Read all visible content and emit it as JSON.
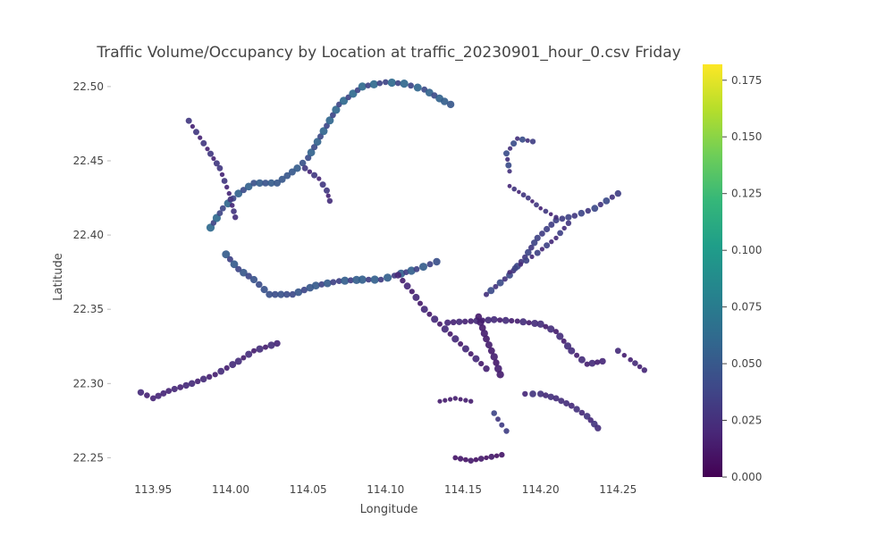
{
  "chart_data": {
    "type": "scatter",
    "title": "Traffic Volume/Occupancy by Location at traffic_20230901_hour_0.csv Friday",
    "xlabel": "Longitude",
    "ylabel": "Latitude",
    "xlim": [
      113.925,
      114.285
    ],
    "ylim": [
      22.237,
      22.515
    ],
    "x_ticks": [
      113.95,
      114.0,
      114.05,
      114.1,
      114.15,
      114.2,
      114.25
    ],
    "x_tick_labels": [
      "113.95",
      "114.00",
      "114.05",
      "114.10",
      "114.15",
      "114.20",
      "114.25"
    ],
    "y_ticks": [
      22.25,
      22.3,
      22.35,
      22.4,
      22.45,
      22.5
    ],
    "y_tick_labels": [
      "22.25",
      "22.30",
      "22.35",
      "22.40",
      "22.45",
      "22.50"
    ],
    "grid": false,
    "colorbar": {
      "colorscale": "Viridis",
      "range": [
        0,
        0.182
      ],
      "ticks": [
        0,
        0.025,
        0.05,
        0.075,
        0.1,
        0.125,
        0.15,
        0.175
      ],
      "tick_labels": [
        "0.000",
        "0.025",
        "0.050",
        "0.075",
        "0.100",
        "0.125",
        "0.150",
        "0.175"
      ]
    },
    "marker_encoding": "color = occupancy, size = volume",
    "routes": [
      {
        "pts": [
          [
            113.942,
            22.294
          ],
          [
            113.95,
            22.29
          ],
          [
            113.96,
            22.295
          ],
          [
            113.975,
            22.3
          ],
          [
            113.99,
            22.306
          ],
          [
            114.005,
            22.315
          ],
          [
            114.015,
            22.322
          ],
          [
            114.03,
            22.327
          ]
        ],
        "v": 0.02,
        "s": 5
      },
      {
        "pts": [
          [
            113.997,
            22.387
          ],
          [
            114.005,
            22.377
          ],
          [
            114.015,
            22.37
          ],
          [
            114.025,
            22.36
          ],
          [
            114.04,
            22.36
          ],
          [
            114.055,
            22.366
          ],
          [
            114.07,
            22.369
          ],
          [
            114.085,
            22.37
          ],
          [
            114.097,
            22.37
          ],
          [
            114.11,
            22.374
          ],
          [
            114.12,
            22.377
          ],
          [
            114.133,
            22.382
          ]
        ],
        "v": 0.045,
        "s": 6
      },
      {
        "pts": [
          [
            113.987,
            22.405
          ],
          [
            113.995,
            22.418
          ],
          [
            114.005,
            22.428
          ],
          [
            114.015,
            22.435
          ],
          [
            114.03,
            22.435
          ],
          [
            114.043,
            22.445
          ],
          [
            114.05,
            22.452
          ],
          [
            114.06,
            22.47
          ],
          [
            114.07,
            22.488
          ],
          [
            114.085,
            22.5
          ],
          [
            114.1,
            22.503
          ],
          [
            114.112,
            22.502
          ],
          [
            114.125,
            22.498
          ],
          [
            114.138,
            22.49
          ],
          [
            114.142,
            22.488
          ]
        ],
        "v": 0.05,
        "s": 6
      },
      {
        "pts": [
          [
            113.973,
            22.477
          ],
          [
            113.985,
            22.458
          ],
          [
            113.993,
            22.445
          ],
          [
            113.999,
            22.428
          ],
          [
            114.003,
            22.412
          ]
        ],
        "v": 0.025,
        "s": 4
      },
      {
        "pts": [
          [
            114.048,
            22.445
          ],
          [
            114.057,
            22.438
          ],
          [
            114.062,
            22.43
          ],
          [
            114.064,
            22.423
          ]
        ],
        "v": 0.025,
        "s": 4
      },
      {
        "pts": [
          [
            114.108,
            22.373
          ],
          [
            114.117,
            22.362
          ],
          [
            114.125,
            22.35
          ],
          [
            114.135,
            22.34
          ],
          [
            114.145,
            22.33
          ],
          [
            114.155,
            22.32
          ],
          [
            114.165,
            22.31
          ]
        ],
        "v": 0.018,
        "s": 5
      },
      {
        "pts": [
          [
            114.14,
            22.341
          ],
          [
            114.155,
            22.342
          ],
          [
            114.17,
            22.343
          ],
          [
            114.185,
            22.342
          ],
          [
            114.2,
            22.34
          ],
          [
            114.21,
            22.335
          ],
          [
            114.22,
            22.322
          ],
          [
            114.23,
            22.313
          ],
          [
            114.24,
            22.315
          ]
        ],
        "v": 0.02,
        "s": 5
      },
      {
        "pts": [
          [
            114.16,
            22.345
          ],
          [
            114.165,
            22.33
          ],
          [
            114.17,
            22.318
          ],
          [
            114.174,
            22.306
          ]
        ],
        "v": 0.015,
        "s": 6
      },
      {
        "pts": [
          [
            114.19,
            22.293
          ],
          [
            114.2,
            22.293
          ],
          [
            114.21,
            22.29
          ],
          [
            114.22,
            22.285
          ],
          [
            114.23,
            22.278
          ],
          [
            114.237,
            22.27
          ]
        ],
        "v": 0.025,
        "s": 5
      },
      {
        "pts": [
          [
            114.165,
            22.36
          ],
          [
            114.18,
            22.373
          ],
          [
            114.19,
            22.385
          ],
          [
            114.198,
            22.398
          ],
          [
            114.21,
            22.41
          ],
          [
            114.222,
            22.413
          ],
          [
            114.235,
            22.418
          ],
          [
            114.25,
            22.428
          ]
        ],
        "v": 0.035,
        "s": 5
      },
      {
        "pts": [
          [
            114.18,
            22.375
          ],
          [
            114.198,
            22.388
          ],
          [
            114.21,
            22.398
          ],
          [
            114.218,
            22.408
          ]
        ],
        "v": 0.03,
        "s": 4
      },
      {
        "pts": [
          [
            114.18,
            22.443
          ],
          [
            114.178,
            22.455
          ],
          [
            114.185,
            22.465
          ],
          [
            114.195,
            22.463
          ]
        ],
        "v": 0.035,
        "s": 4
      },
      {
        "pts": [
          [
            114.18,
            22.433
          ],
          [
            114.192,
            22.425
          ],
          [
            114.2,
            22.418
          ],
          [
            114.21,
            22.412
          ]
        ],
        "v": 0.025,
        "s": 3
      },
      {
        "pts": [
          [
            114.145,
            22.25
          ],
          [
            114.155,
            22.248
          ],
          [
            114.165,
            22.25
          ],
          [
            114.175,
            22.252
          ]
        ],
        "v": 0.012,
        "s": 4
      },
      {
        "pts": [
          [
            114.135,
            22.288
          ],
          [
            114.145,
            22.29
          ],
          [
            114.155,
            22.288
          ]
        ],
        "v": 0.015,
        "s": 3
      },
      {
        "pts": [
          [
            114.17,
            22.28
          ],
          [
            114.175,
            22.272
          ],
          [
            114.178,
            22.268
          ]
        ],
        "v": 0.035,
        "s": 4
      },
      {
        "pts": [
          [
            114.25,
            22.322
          ],
          [
            114.258,
            22.316
          ],
          [
            114.267,
            22.309
          ]
        ],
        "v": 0.02,
        "s": 4
      }
    ]
  }
}
